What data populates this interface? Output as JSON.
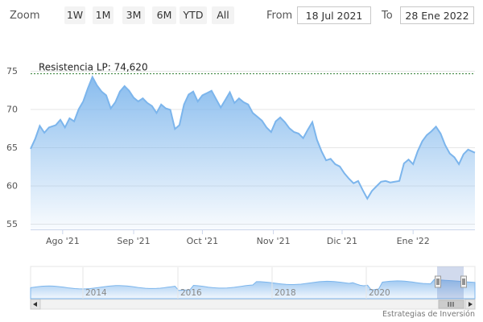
{
  "toolbar": {
    "zoom_label": "Zoom",
    "buttons": [
      "1W",
      "1M",
      "3M",
      "6M",
      "YTD",
      "All"
    ],
    "from_label": "From",
    "from_value": "18 Jul 2021",
    "to_label": "To",
    "to_value": "28 Ene 2022"
  },
  "credit": "Estrategias de Inversión",
  "colors": {
    "line": "#7cb5ec",
    "fill_top": "#7cb5ec",
    "resistance": "#2e7d32"
  },
  "chart_data": {
    "type": "area",
    "ylim": [
      55,
      75
    ],
    "y_ticks": [
      "55",
      "60",
      "65",
      "70",
      "75"
    ],
    "x_tick_labels": [
      "Ago '21",
      "Sep '21",
      "Oct '21",
      "Nov '21",
      "Dic '21",
      "Ene '22"
    ],
    "resistance": {
      "label": "Resistencia LP: 74,620",
      "value": 74.62
    },
    "x": [
      "2021-07-18",
      "2021-07-20",
      "2021-07-22",
      "2021-07-24",
      "2021-07-26",
      "2021-07-29",
      "2021-07-31",
      "2021-08-02",
      "2021-08-04",
      "2021-08-06",
      "2021-08-08",
      "2021-08-10",
      "2021-08-12",
      "2021-08-14",
      "2021-08-16",
      "2021-08-18",
      "2021-08-20",
      "2021-08-22",
      "2021-08-24",
      "2021-08-26",
      "2021-08-28",
      "2021-08-30",
      "2021-09-01",
      "2021-09-03",
      "2021-09-05",
      "2021-09-07",
      "2021-09-09",
      "2021-09-11",
      "2021-09-13",
      "2021-09-15",
      "2021-09-17",
      "2021-09-19",
      "2021-09-21",
      "2021-09-23",
      "2021-09-25",
      "2021-09-27",
      "2021-09-29",
      "2021-10-01",
      "2021-10-03",
      "2021-10-05",
      "2021-10-07",
      "2021-10-09",
      "2021-10-11",
      "2021-10-13",
      "2021-10-15",
      "2021-10-17",
      "2021-10-19",
      "2021-10-21",
      "2021-10-23",
      "2021-10-25",
      "2021-10-27",
      "2021-10-29",
      "2021-10-31",
      "2021-11-02",
      "2021-11-04",
      "2021-11-06",
      "2021-11-08",
      "2021-11-10",
      "2021-11-12",
      "2021-11-14",
      "2021-11-16",
      "2021-11-18",
      "2021-11-20",
      "2021-11-22",
      "2021-11-24",
      "2021-11-26",
      "2021-11-28",
      "2021-11-30",
      "2021-12-02",
      "2021-12-04",
      "2021-12-06",
      "2021-12-08",
      "2021-12-10",
      "2021-12-12",
      "2021-12-14",
      "2021-12-16",
      "2021-12-18",
      "2021-12-20",
      "2021-12-22",
      "2021-12-24",
      "2021-12-26",
      "2021-12-28",
      "2021-12-30",
      "2022-01-01",
      "2022-01-03",
      "2022-01-05",
      "2022-01-07",
      "2022-01-09",
      "2022-01-11",
      "2022-01-13",
      "2022-01-15",
      "2022-01-17",
      "2022-01-19",
      "2022-01-21",
      "2022-01-23",
      "2022-01-25",
      "2022-01-28"
    ],
    "values": [
      64.8,
      66.1,
      67.8,
      66.9,
      67.6,
      67.9,
      68.6,
      67.6,
      68.8,
      68.4,
      70.0,
      71.0,
      72.7,
      74.2,
      73.1,
      72.3,
      71.8,
      70.1,
      70.9,
      72.3,
      73.0,
      72.4,
      71.5,
      71.0,
      71.4,
      70.8,
      70.4,
      69.5,
      70.6,
      70.1,
      69.9,
      67.4,
      67.9,
      70.6,
      71.9,
      72.3,
      71.0,
      71.8,
      72.1,
      72.4,
      71.3,
      70.2,
      71.2,
      72.2,
      70.8,
      71.4,
      70.9,
      70.6,
      69.5,
      69.0,
      68.5,
      67.6,
      67.0,
      68.4,
      68.9,
      68.3,
      67.5,
      67.0,
      66.8,
      66.2,
      67.3,
      68.3,
      66.0,
      64.5,
      63.3,
      63.5,
      62.8,
      62.5,
      61.6,
      60.9,
      60.3,
      60.6,
      59.4,
      58.3,
      59.3,
      59.9,
      60.5,
      60.6,
      60.4,
      60.5,
      60.6,
      62.9,
      63.4,
      62.8,
      64.5,
      65.8,
      66.6,
      67.1,
      67.7,
      66.8,
      65.3,
      64.2,
      63.7,
      62.8,
      64.1,
      64.7,
      64.3
    ]
  },
  "navigator": {
    "x_tick_labels": [
      "2014",
      "2016",
      "2018",
      "2020"
    ]
  }
}
